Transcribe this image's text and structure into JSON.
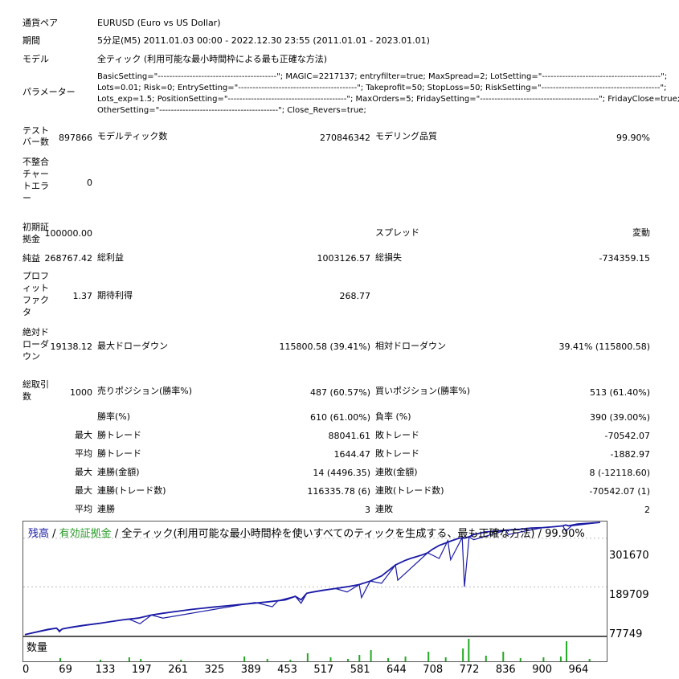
{
  "summary": {
    "pair": {
      "label": "通貨ペア",
      "value": "EURUSD (Euro vs US Dollar)"
    },
    "period": {
      "label": "期間",
      "value": "5分足(M5) 2011.01.03 00:00 - 2022.12.30 23:55 (2011.01.01 - 2023.01.01)"
    },
    "model": {
      "label": "モデル",
      "value": "全ティック (利用可能な最小時間枠による最も正確な方法)"
    },
    "params": {
      "label": "パラメーター",
      "lines": [
        "BasicSetting=\"-----------------------------------------\"; MAGIC=2217137; entryfilter=true; MaxSpread=2; LotSetting=\"-----------------------------------------\";",
        "Lots=0.01; Risk=0; EntrySetting=\"-----------------------------------------\"; Takeprofit=50; StopLoss=50; RiskSetting=\"-----------------------------------------\";",
        "Lots_exp=1.5; PositionSetting=\"-----------------------------------------\"; MaxOrders=5; FridaySetting=\"-----------------------------------------\"; FridayClose=true;",
        "OtherSetting=\"-----------------------------------------\"; Close_Revers=true;"
      ]
    }
  },
  "stats": {
    "bars": {
      "label": "テストバー数",
      "value": "897866"
    },
    "ticks": {
      "label": "モデルティック数",
      "value": "270846342"
    },
    "quality": {
      "label": "モデリング品質",
      "value": "99.90%"
    },
    "mismatch": {
      "label": "不整合チャートエラー",
      "value": "0"
    },
    "deposit": {
      "label": "初期証拠金",
      "value": "100000.00"
    },
    "spread": {
      "label": "スプレッド",
      "value": "変動"
    },
    "net": {
      "label": "純益",
      "value": "268767.42"
    },
    "gross_profit": {
      "label": "総利益",
      "value": "1003126.57"
    },
    "gross_loss": {
      "label": "総損失",
      "value": "-734359.15"
    },
    "pf": {
      "label": "プロフィットファクタ",
      "value": "1.37"
    },
    "expected": {
      "label": "期待利得",
      "value": "268.77"
    },
    "abs_dd": {
      "label": "絶対ドローダウン",
      "value": "19138.12"
    },
    "max_dd": {
      "label": "最大ドローダウン",
      "value": "115800.58 (39.41%)"
    },
    "rel_dd": {
      "label": "相対ドローダウン",
      "value": "39.41% (115800.58)"
    },
    "total_trades": {
      "label": "総取引数",
      "value": "1000"
    },
    "short": {
      "label": "売りポジション(勝率%)",
      "value": "487 (60.57%)"
    },
    "long": {
      "label": "買いポジション(勝率%)",
      "value": "513 (61.40%)"
    },
    "win_pct": {
      "label": "勝率(%)",
      "value": "610 (61.00%)"
    },
    "loss_pct": {
      "label": "負率 (%)",
      "value": "390 (39.00%)"
    },
    "max_label": "最大",
    "avg_label": "平均",
    "max_win": {
      "label": "勝トレード",
      "value": "88041.61"
    },
    "max_loss": {
      "label": "敗トレード",
      "value": "-70542.07"
    },
    "avg_win": {
      "label": "勝トレード",
      "value": "1644.47"
    },
    "avg_loss": {
      "label": "敗トレード",
      "value": "-1882.97"
    },
    "cons_win_amt": {
      "label": "連勝(金額)",
      "value": "14 (4496.35)"
    },
    "cons_loss_amt": {
      "label": "連敗(金額)",
      "value": "8 (-12118.60)"
    },
    "cons_win_tr": {
      "label": "連勝(トレード数)",
      "value": "116335.78 (6)"
    },
    "cons_loss_tr": {
      "label": "連敗(トレード数)",
      "value": "-70542.07 (1)"
    },
    "avg_cons_win": {
      "label": "連勝",
      "value": "3"
    },
    "avg_cons_loss": {
      "label": "連敗",
      "value": "2"
    }
  },
  "chart": {
    "legend_balance": "残高",
    "legend_sep1": " / ",
    "legend_equity": "有効証拠金",
    "legend_rest": " / 全ティック(利用可能な最小時間枠を使いすべてのティックを生成する、最も正確な方法) / 99.90%",
    "volume_label": "数量",
    "colors": {
      "balance": "#1a1aa6",
      "volume": "#22aa22",
      "legend_equity": "#2a9a2a",
      "legend_balance": "#1a1aa6"
    }
  },
  "chart_data": {
    "type": "line",
    "title": "",
    "yticks": [
      "301670",
      "189709",
      "77749"
    ],
    "xticks": [
      "0",
      "69",
      "133",
      "197",
      "261",
      "325",
      "389",
      "453",
      "517",
      "581",
      "644",
      "708",
      "772",
      "836",
      "900",
      "964"
    ],
    "ylim": [
      77749,
      340000
    ],
    "xlim": [
      0,
      1000
    ],
    "series": [
      {
        "name": "残高",
        "x": [
          0,
          20,
          40,
          55,
          60,
          65,
          80,
          100,
          130,
          150,
          170,
          197,
          220,
          240,
          261,
          290,
          325,
          350,
          389,
          420,
          453,
          470,
          480,
          490,
          500,
          517,
          540,
          560,
          581,
          600,
          620,
          644,
          660,
          670,
          680,
          690,
          700,
          708,
          720,
          730,
          740,
          755,
          765,
          772,
          780,
          800,
          820,
          836,
          860,
          880,
          900,
          920,
          935,
          940,
          945,
          960,
          970,
          980,
          990,
          1000
        ],
        "y": [
          80000,
          86000,
          92000,
          95000,
          88000,
          93000,
          97000,
          101000,
          106000,
          110000,
          114000,
          118000,
          125000,
          129000,
          133000,
          138000,
          143000,
          146000,
          151000,
          155000,
          160000,
          168000,
          160000,
          175000,
          178000,
          182000,
          186000,
          190000,
          195000,
          203000,
          215000,
          240000,
          250000,
          255000,
          259000,
          263000,
          268000,
          276000,
          285000,
          290000,
          295000,
          302000,
          302000,
          305000,
          310000,
          316000,
          318000,
          320000,
          322000,
          325000,
          326000,
          328000,
          330000,
          332000,
          330000,
          334000,
          335000,
          336000,
          337000,
          338000
        ]
      },
      {
        "name": "有効証拠金",
        "x": [
          0,
          55,
          60,
          65,
          180,
          200,
          220,
          240,
          400,
          430,
          440,
          470,
          480,
          490,
          540,
          560,
          581,
          585,
          600,
          620,
          644,
          648,
          700,
          720,
          735,
          740,
          760,
          764,
          772,
          780,
          836,
          840,
          900,
          935,
          940,
          950,
          1000
        ],
        "y": [
          80000,
          95000,
          86000,
          93000,
          116000,
          105000,
          125000,
          118000,
          154000,
          144000,
          158000,
          168000,
          152000,
          175000,
          186000,
          178000,
          195000,
          165000,
          203000,
          198000,
          240000,
          205000,
          268000,
          255000,
          296000,
          252000,
          303000,
          190000,
          305000,
          298000,
          320000,
          310000,
          326000,
          330000,
          318000,
          330000,
          338000
        ]
      }
    ],
    "volume": {
      "x": [
        60,
        130,
        180,
        200,
        270,
        380,
        420,
        460,
        490,
        530,
        560,
        580,
        600,
        630,
        660,
        700,
        730,
        760,
        770,
        800,
        830,
        860,
        900,
        930,
        940,
        980
      ],
      "values": [
        4,
        2,
        5,
        3,
        2,
        6,
        3,
        2,
        10,
        5,
        3,
        8,
        14,
        4,
        6,
        12,
        5,
        16,
        28,
        7,
        12,
        4,
        5,
        6,
        25,
        3
      ]
    }
  }
}
